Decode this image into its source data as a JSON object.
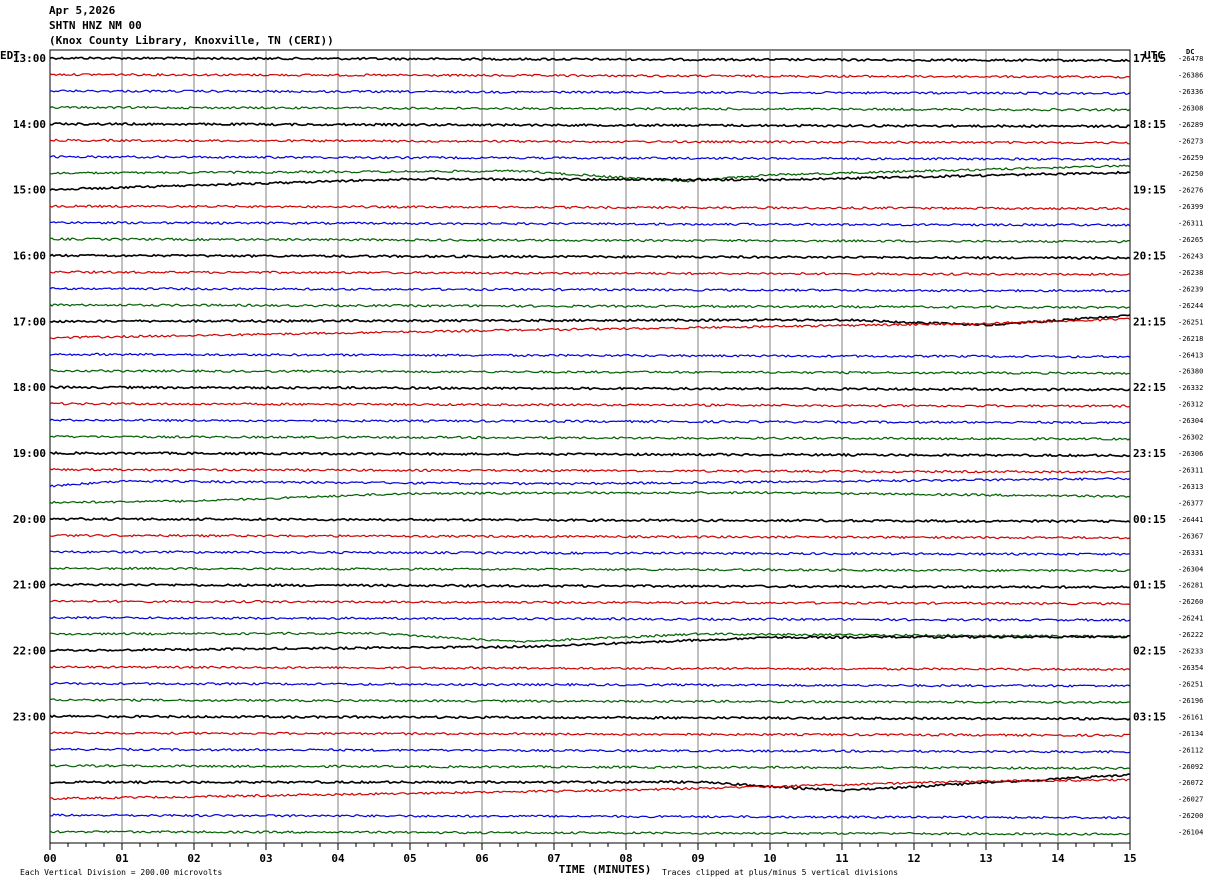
{
  "header": {
    "date": "Apr 5,2026",
    "station": "SHTN HNZ NM 00",
    "location": "(Knox County Library, Knoxville, TN (CERI))"
  },
  "left_tz": "EDT",
  "right_tz": "UTC",
  "dc_label": "DC",
  "footer": {
    "scale": "Each Vertical Division =  200.00 microvolts",
    "xlabel": "TIME (MINUTES)",
    "clip_note": "Traces clipped at plus/minus 5 vertical divisions"
  },
  "colors": {
    "trace_cycle": [
      "#000000",
      "#d00000",
      "#0000d8",
      "#006000"
    ],
    "grid": "#808080"
  },
  "chart_data": {
    "type": "line",
    "title": "SHTN HNZ NM 00",
    "xlabel": "TIME (MINUTES)",
    "x_ticks": [
      "00",
      "01",
      "02",
      "03",
      "04",
      "05",
      "06",
      "07",
      "08",
      "09",
      "10",
      "11",
      "12",
      "13",
      "14",
      "15"
    ],
    "xlim": [
      0,
      15
    ],
    "minutes_per_line": 15,
    "left_hour_labels": [
      "13:00",
      "14:00",
      "15:00",
      "16:00",
      "17:00",
      "18:00",
      "19:00",
      "20:00",
      "21:00",
      "22:00",
      "23:00"
    ],
    "right_hour_labels": [
      "17:15",
      "18:15",
      "19:15",
      "20:15",
      "21:15",
      "22:15",
      "23:15",
      "00:15",
      "01:15",
      "02:15",
      "03:15"
    ],
    "dc_offsets": [
      -26478,
      -26386,
      -26336,
      -26308,
      -26289,
      -26273,
      -26259,
      -26250,
      -26276,
      -26399,
      -26311,
      -26265,
      -26243,
      -26238,
      -26239,
      -26244,
      -26251,
      -26218,
      -26413,
      -26380,
      -26332,
      -26312,
      -26304,
      -26302,
      -26306,
      -26311,
      -26313,
      -26377,
      -26441,
      -26367,
      -26331,
      -26304,
      -26281,
      -26260,
      -26241,
      -26222,
      -26233,
      -26354,
      -26251,
      -26196,
      -26161,
      -26134,
      -26112,
      -26092,
      -26072,
      -26027,
      -26200,
      -26104
    ],
    "drifts": [
      {
        "line": 7,
        "segments": [
          [
            0,
            0
          ],
          [
            6.5,
            0.2
          ],
          [
            8.8,
            -0.4
          ],
          [
            10,
            0
          ],
          [
            15,
            0.6
          ]
        ]
      },
      {
        "line": 8,
        "segments": [
          [
            0,
            0
          ],
          [
            5,
            0.7
          ],
          [
            10,
            0.7
          ],
          [
            15,
            1.2
          ]
        ]
      },
      {
        "line": 16,
        "segments": [
          [
            0,
            0
          ],
          [
            11,
            0.2
          ],
          [
            13,
            -0.1
          ],
          [
            15,
            0.5
          ]
        ]
      },
      {
        "line": 17,
        "segments": [
          [
            0,
            0
          ],
          [
            6,
            0.5
          ],
          [
            13,
            1.0
          ],
          [
            15,
            1.3
          ]
        ]
      },
      {
        "line": 26,
        "segments": [
          [
            0,
            0
          ],
          [
            1,
            0.3
          ],
          [
            7,
            0.2
          ],
          [
            15,
            0.6
          ]
        ]
      },
      {
        "line": 27,
        "segments": [
          [
            0,
            0
          ],
          [
            2,
            0.1
          ],
          [
            5,
            0.6
          ],
          [
            10,
            0.7
          ],
          [
            15,
            0.5
          ]
        ]
      },
      {
        "line": 35,
        "segments": [
          [
            0,
            0
          ],
          [
            4.5,
            0.1
          ],
          [
            6.5,
            -0.4
          ],
          [
            9,
            0.1
          ],
          [
            15,
            0.0
          ]
        ]
      },
      {
        "line": 36,
        "segments": [
          [
            0,
            0
          ],
          [
            6.6,
            0.3
          ],
          [
            10,
            0.9
          ],
          [
            15,
            1.0
          ]
        ]
      },
      {
        "line": 44,
        "segments": [
          [
            0,
            0
          ],
          [
            9,
            0.1
          ],
          [
            11,
            -0.4
          ],
          [
            15,
            0.6
          ]
        ]
      },
      {
        "line": 45,
        "segments": [
          [
            0,
            0
          ],
          [
            8,
            0.6
          ],
          [
            13,
            1.2
          ],
          [
            15,
            1.3
          ]
        ]
      }
    ]
  }
}
